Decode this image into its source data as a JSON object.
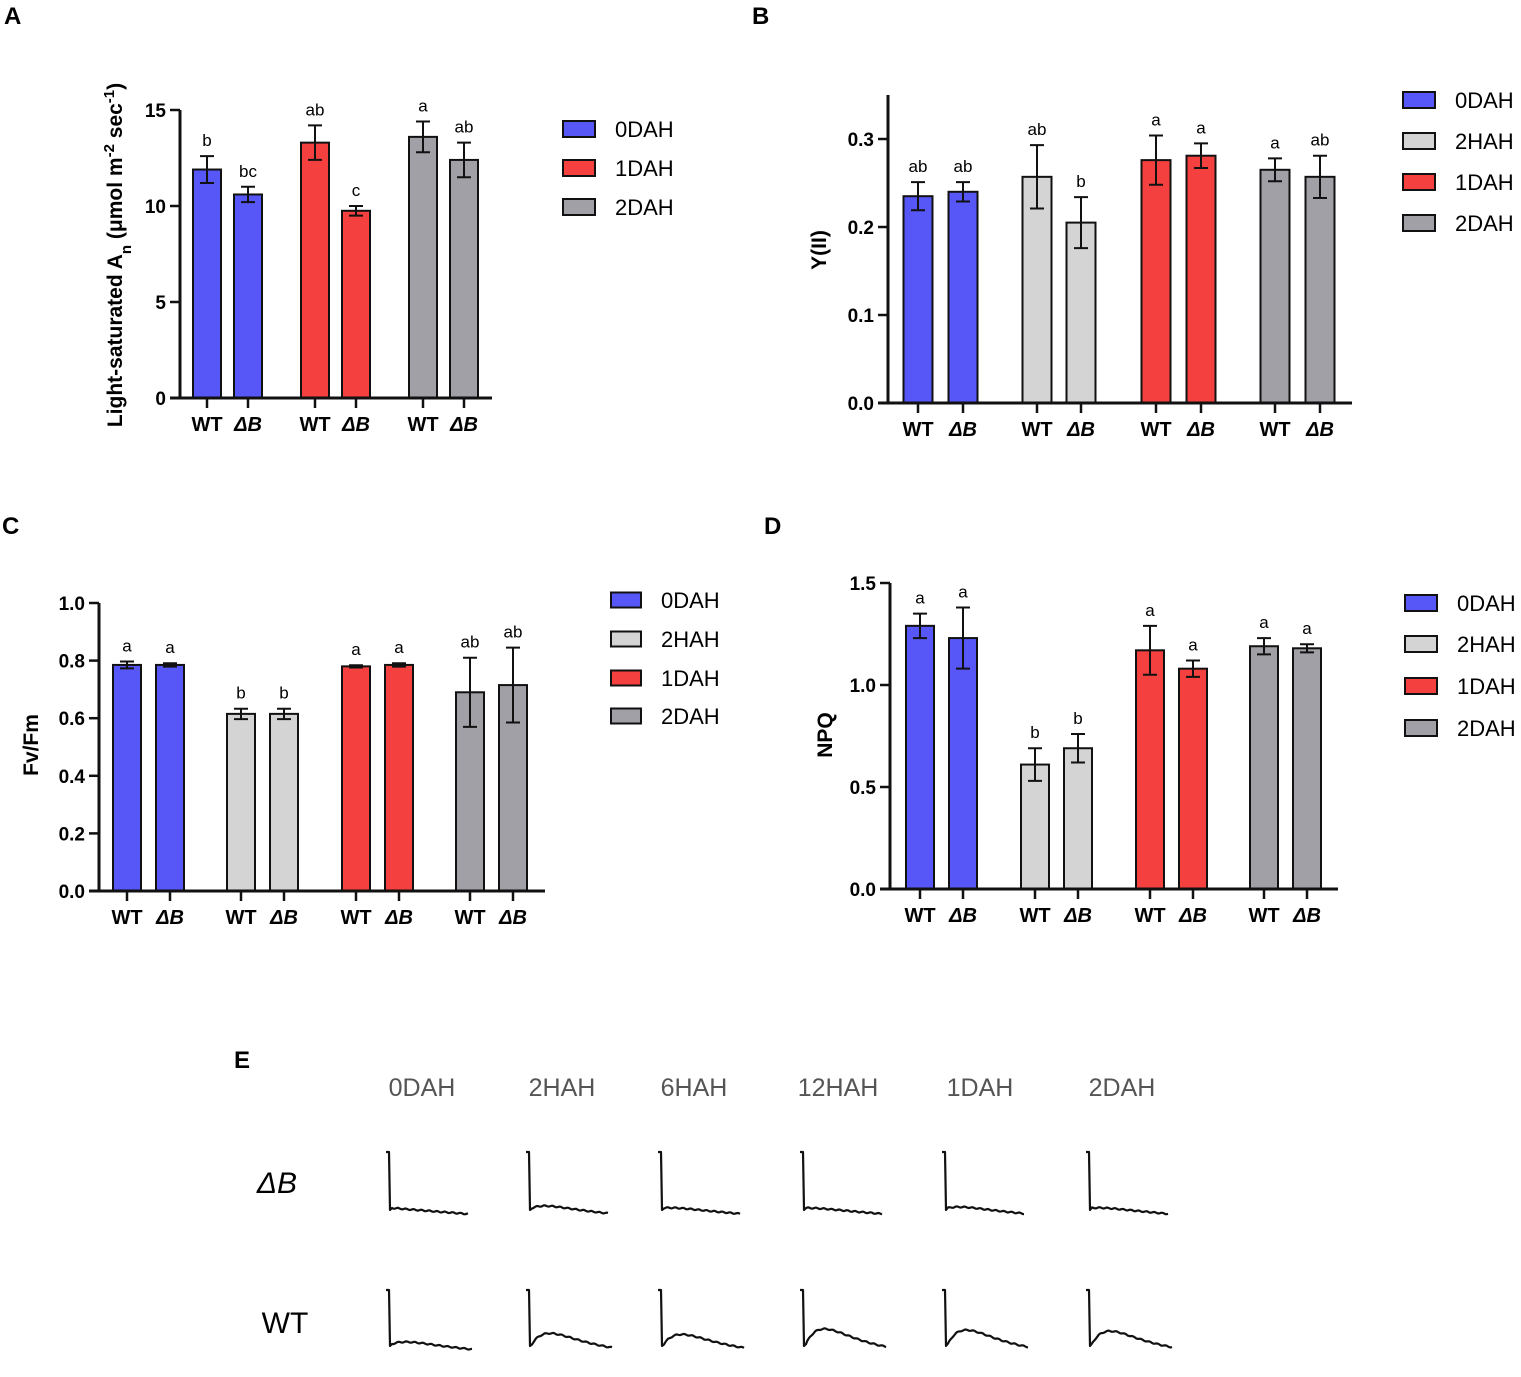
{
  "colors": {
    "0DAH": "#5757f8",
    "2HAH": "#d4d4d4",
    "1DAH": "#f54040",
    "2DAH": "#a0a0a6"
  },
  "chart_data": [
    {
      "panel": "A",
      "type": "bar",
      "ylabel_parts": [
        {
          "t": "Light-saturated A"
        },
        {
          "t": "n",
          "sub": true
        },
        {
          "t": " (μmol m"
        },
        {
          "t": "-2",
          "sup": true
        },
        {
          "t": " sec"
        },
        {
          "t": "-1",
          "sup": true
        },
        {
          "t": ")"
        }
      ],
      "ylim": [
        0,
        15
      ],
      "yticks": [
        "0",
        "5",
        "10",
        "15"
      ],
      "ytick_values": [
        0,
        5,
        10,
        15
      ],
      "legend": [
        "0DAH",
        "1DAH",
        "2DAH"
      ],
      "bars": [
        {
          "genotype": "WT",
          "group": "0DAH",
          "value": 11.9,
          "err": 0.7,
          "sig": "b"
        },
        {
          "genotype": "ΔB",
          "group": "0DAH",
          "value": 10.6,
          "err": 0.4,
          "sig": "bc"
        },
        {
          "genotype": "WT",
          "group": "1DAH",
          "value": 13.3,
          "err": 0.9,
          "sig": "ab"
        },
        {
          "genotype": "ΔB",
          "group": "1DAH",
          "value": 9.75,
          "err": 0.25,
          "sig": "c"
        },
        {
          "genotype": "WT",
          "group": "2DAH",
          "value": 13.6,
          "err": 0.8,
          "sig": "a"
        },
        {
          "genotype": "ΔB",
          "group": "2DAH",
          "value": 12.4,
          "err": 0.9,
          "sig": "ab"
        }
      ]
    },
    {
      "panel": "B",
      "type": "bar",
      "ylabel_parts": [
        {
          "t": "Y(II)"
        }
      ],
      "ylim": [
        0,
        0.35
      ],
      "yticks": [
        "0.0",
        "0.1",
        "0.2",
        "0.3"
      ],
      "ytick_values": [
        0,
        0.1,
        0.2,
        0.3
      ],
      "legend": [
        "0DAH",
        "2HAH",
        "1DAH",
        "2DAH"
      ],
      "bars": [
        {
          "genotype": "WT",
          "group": "0DAH",
          "value": 0.235,
          "err": 0.016,
          "sig": "ab"
        },
        {
          "genotype": "ΔB",
          "group": "0DAH",
          "value": 0.24,
          "err": 0.011,
          "sig": "ab"
        },
        {
          "genotype": "WT",
          "group": "2HAH",
          "value": 0.257,
          "err": 0.036,
          "sig": "ab"
        },
        {
          "genotype": "ΔB",
          "group": "2HAH",
          "value": 0.205,
          "err": 0.029,
          "sig": "b"
        },
        {
          "genotype": "WT",
          "group": "1DAH",
          "value": 0.276,
          "err": 0.028,
          "sig": "a"
        },
        {
          "genotype": "ΔB",
          "group": "1DAH",
          "value": 0.281,
          "err": 0.014,
          "sig": "a"
        },
        {
          "genotype": "WT",
          "group": "2DAH",
          "value": 0.265,
          "err": 0.013,
          "sig": "a"
        },
        {
          "genotype": "ΔB",
          "group": "2DAH",
          "value": 0.257,
          "err": 0.024,
          "sig": "ab"
        }
      ]
    },
    {
      "panel": "C",
      "type": "bar",
      "ylabel_parts": [
        {
          "t": "Fv/Fm"
        }
      ],
      "ylim": [
        0,
        1.0
      ],
      "yticks": [
        "0.0",
        "0.2",
        "0.4",
        "0.6",
        "0.8",
        "1.0"
      ],
      "ytick_values": [
        0,
        0.2,
        0.4,
        0.6,
        0.8,
        1.0
      ],
      "legend": [
        "0DAH",
        "2HAH",
        "1DAH",
        "2DAH"
      ],
      "bars": [
        {
          "genotype": "WT",
          "group": "0DAH",
          "value": 0.785,
          "err": 0.012,
          "sig": "a"
        },
        {
          "genotype": "ΔB",
          "group": "0DAH",
          "value": 0.785,
          "err": 0.006,
          "sig": "a"
        },
        {
          "genotype": "WT",
          "group": "2HAH",
          "value": 0.615,
          "err": 0.018,
          "sig": "b"
        },
        {
          "genotype": "ΔB",
          "group": "2HAH",
          "value": 0.615,
          "err": 0.018,
          "sig": "b"
        },
        {
          "genotype": "WT",
          "group": "1DAH",
          "value": 0.78,
          "err": 0.004,
          "sig": "a"
        },
        {
          "genotype": "ΔB",
          "group": "1DAH",
          "value": 0.785,
          "err": 0.006,
          "sig": "a"
        },
        {
          "genotype": "WT",
          "group": "2DAH",
          "value": 0.69,
          "err": 0.12,
          "sig": "ab"
        },
        {
          "genotype": "ΔB",
          "group": "2DAH",
          "value": 0.715,
          "err": 0.13,
          "sig": "ab"
        }
      ]
    },
    {
      "panel": "D",
      "type": "bar",
      "ylabel_parts": [
        {
          "t": "NPQ"
        }
      ],
      "ylim": [
        0,
        1.5
      ],
      "yticks": [
        "0.0",
        "0.5",
        "1.0",
        "1.5"
      ],
      "ytick_values": [
        0,
        0.5,
        1.0,
        1.5
      ],
      "legend": [
        "0DAH",
        "2HAH",
        "1DAH",
        "2DAH"
      ],
      "bars": [
        {
          "genotype": "WT",
          "group": "0DAH",
          "value": 1.29,
          "err": 0.06,
          "sig": "a"
        },
        {
          "genotype": "ΔB",
          "group": "0DAH",
          "value": 1.23,
          "err": 0.15,
          "sig": "a"
        },
        {
          "genotype": "WT",
          "group": "2HAH",
          "value": 0.61,
          "err": 0.08,
          "sig": "b"
        },
        {
          "genotype": "ΔB",
          "group": "2HAH",
          "value": 0.69,
          "err": 0.07,
          "sig": "b"
        },
        {
          "genotype": "WT",
          "group": "1DAH",
          "value": 1.17,
          "err": 0.12,
          "sig": "a"
        },
        {
          "genotype": "ΔB",
          "group": "1DAH",
          "value": 1.08,
          "err": 0.04,
          "sig": "a"
        },
        {
          "genotype": "WT",
          "group": "2DAH",
          "value": 1.19,
          "err": 0.04,
          "sig": "a"
        },
        {
          "genotype": "ΔB",
          "group": "2DAH",
          "value": 1.18,
          "err": 0.02,
          "sig": "a"
        }
      ]
    }
  ],
  "panel_e": {
    "label": "E",
    "columns": [
      "0DAH",
      "2HAH",
      "6HAH",
      "12HAH",
      "1DAH",
      "2DAH"
    ],
    "rows": [
      {
        "label": "ΔB",
        "italic": true,
        "transient_bump": [
          0.0,
          0.15,
          0.05,
          0.03,
          0.1,
          0.05
        ]
      },
      {
        "label": "WT",
        "italic": false,
        "transient_bump": [
          0.15,
          0.55,
          0.5,
          0.75,
          0.7,
          0.65
        ]
      }
    ]
  }
}
